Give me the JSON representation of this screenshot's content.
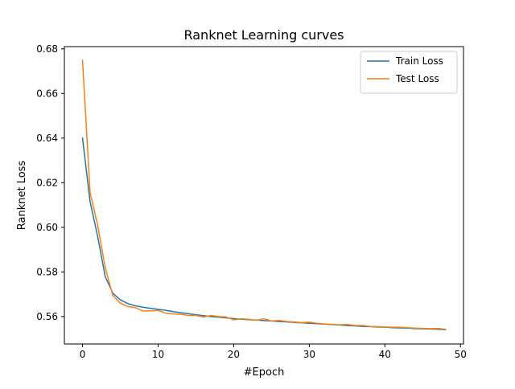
{
  "chart_data": {
    "type": "line",
    "title": "Ranknet Learning curves",
    "xlabel": "#Epoch",
    "ylabel": "Ranknet Loss",
    "xlim": [
      -2.4,
      50.4
    ],
    "ylim": [
      0.5477,
      0.681
    ],
    "xticks": [
      0,
      10,
      20,
      30,
      40,
      50
    ],
    "xtick_labels": [
      "0",
      "10",
      "20",
      "30",
      "40",
      "50"
    ],
    "yticks": [
      0.56,
      0.58,
      0.6,
      0.62,
      0.64,
      0.66,
      0.68
    ],
    "ytick_labels": [
      "0.56",
      "0.58",
      "0.60",
      "0.62",
      "0.64",
      "0.66",
      "0.68"
    ],
    "grid": false,
    "legend_position": "upper right",
    "x": [
      0,
      1,
      2,
      3,
      4,
      5,
      6,
      7,
      8,
      9,
      10,
      11,
      12,
      13,
      14,
      15,
      16,
      17,
      18,
      19,
      20,
      21,
      22,
      23,
      24,
      25,
      26,
      27,
      28,
      29,
      30,
      31,
      32,
      33,
      34,
      35,
      36,
      37,
      38,
      39,
      40,
      41,
      42,
      43,
      44,
      45,
      46,
      47,
      48
    ],
    "series": [
      {
        "name": "Train Loss",
        "color": "#1f77b4",
        "values": [
          0.64,
          0.6115,
          0.596,
          0.578,
          0.5705,
          0.5675,
          0.5658,
          0.5648,
          0.5642,
          0.5637,
          0.5633,
          0.5628,
          0.5622,
          0.5617,
          0.5613,
          0.5608,
          0.5604,
          0.56,
          0.5597,
          0.5594,
          0.5591,
          0.5588,
          0.5586,
          0.5584,
          0.5582,
          0.558,
          0.5578,
          0.5576,
          0.5574,
          0.5572,
          0.557,
          0.5568,
          0.5566,
          0.5564,
          0.5562,
          0.556,
          0.5558,
          0.5556,
          0.5555,
          0.5553,
          0.5552,
          0.555,
          0.5549,
          0.5548,
          0.5546,
          0.5545,
          0.5544,
          0.5543,
          0.5541
        ]
      },
      {
        "name": "Test Loss",
        "color": "#ff7f0e",
        "values": [
          0.675,
          0.6155,
          0.601,
          0.582,
          0.5695,
          0.566,
          0.5645,
          0.564,
          0.5625,
          0.5625,
          0.5628,
          0.5615,
          0.5612,
          0.561,
          0.5605,
          0.5605,
          0.5598,
          0.5605,
          0.56,
          0.5598,
          0.5585,
          0.559,
          0.5588,
          0.5583,
          0.559,
          0.558,
          0.5583,
          0.5578,
          0.5576,
          0.5573,
          0.5575,
          0.557,
          0.5567,
          0.5565,
          0.5563,
          0.5565,
          0.556,
          0.556,
          0.5556,
          0.5555,
          0.5553,
          0.5552,
          0.5552,
          0.555,
          0.5548,
          0.5547,
          0.5546,
          0.5547,
          0.5543
        ]
      }
    ]
  }
}
